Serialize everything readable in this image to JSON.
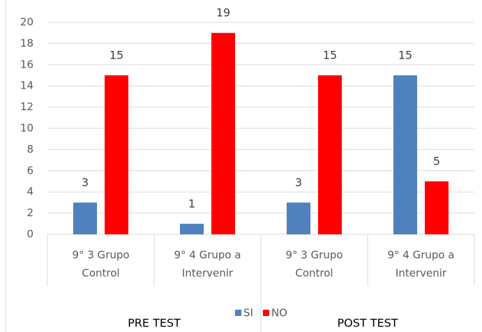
{
  "chart_data": {
    "type": "bar",
    "categories": [
      [
        "9° 3 Grupo",
        "Control"
      ],
      [
        "9° 4 Grupo a",
        "Intervenir"
      ],
      [
        "9° 3 Grupo",
        "Control"
      ],
      [
        "9° 4 Grupo a",
        "Intervenir"
      ]
    ],
    "series": [
      {
        "name": "SI",
        "color": "#4f81bd",
        "values": [
          3,
          1,
          3,
          15
        ]
      },
      {
        "name": "NO",
        "color": "#ff0000",
        "values": [
          15,
          19,
          15,
          5
        ]
      }
    ],
    "annotations": [
      "PRE TEST",
      "POST TEST"
    ],
    "ylim": [
      0,
      20
    ],
    "yticks": [
      0,
      2,
      4,
      6,
      8,
      10,
      12,
      14,
      16,
      18,
      20
    ],
    "grid": true,
    "legend": "bottom"
  }
}
